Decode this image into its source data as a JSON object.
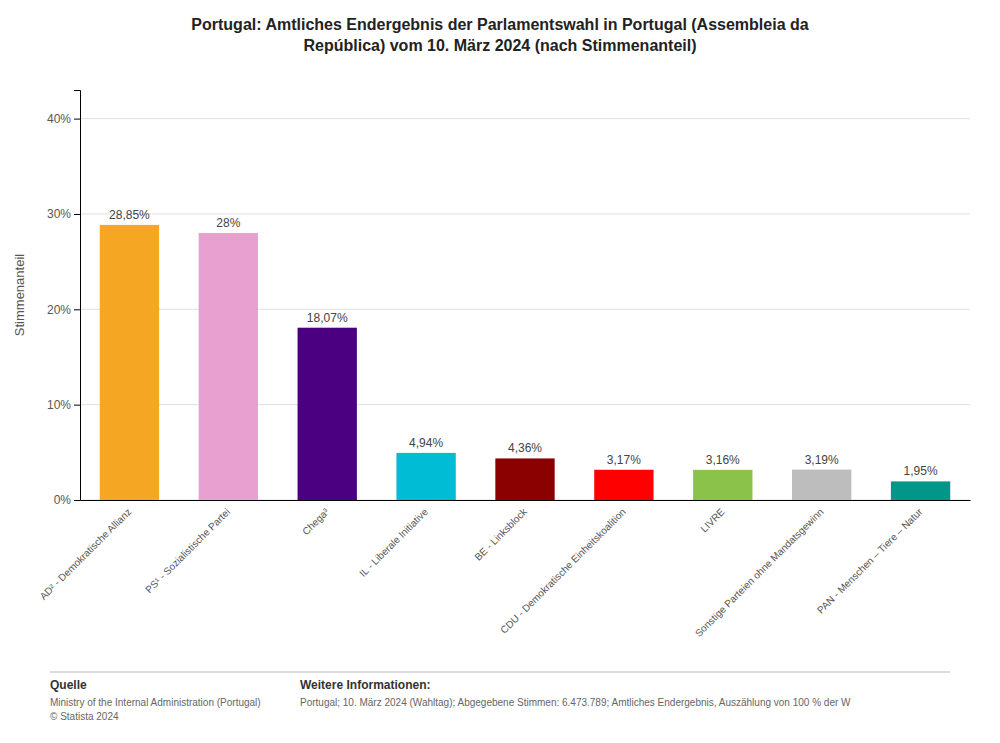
{
  "chart_data": {
    "type": "bar",
    "title": "Portugal: Amtliches Endergebnis der Parlamentswahl in Portugal (Assembleia da\nRepública) vom 10. März 2024 (nach Stimmenanteil)",
    "ylabel": "Stimmenanteil",
    "categories": [
      "AD² - Demokratische Allianz",
      "PS¹ - Sozialistische Partei",
      "Chega³",
      "IL - Liberale Initiative",
      "BE - Linksblock",
      "CDU - Demokratische Einheitskoalition",
      "LIVRE",
      "Sonstige Parteien ohne Mandatsgewinn",
      "PAN - Menschen – Tiere – Natur"
    ],
    "values": [
      28.85,
      28.0,
      18.07,
      4.94,
      4.36,
      3.17,
      3.16,
      3.19,
      1.95
    ],
    "value_labels": [
      "28,85%",
      "28%",
      "18,07%",
      "4,94%",
      "4,36%",
      "3,17%",
      "3,16%",
      "3,19%",
      "1,95%"
    ],
    "colors": [
      "#F5A623",
      "#E8A0D0",
      "#4B0082",
      "#00BCD4",
      "#8B0000",
      "#FF0000",
      "#8BC34A",
      "#BDBDBD",
      "#009688"
    ],
    "data_labels": true,
    "ylim": [
      0,
      43
    ],
    "yticks": [
      {
        "value": 0,
        "label": "0%"
      },
      {
        "value": 10,
        "label": "10%"
      },
      {
        "value": 20,
        "label": "20%"
      },
      {
        "value": 30,
        "label": "30%"
      },
      {
        "value": 40,
        "label": "40%"
      }
    ],
    "grid": true,
    "annotations": [
      "Quelle",
      "Ministry of the Internal Administration (Portugal)\n© Statista 2024",
      "Weitere Informationen:",
      "Portugal; 10. März 2024 (Wahltag); Abgegebene Stimmen: 6.473.789; Amtliches Endergebnis, Auszählung von 100 % der W"
    ]
  }
}
